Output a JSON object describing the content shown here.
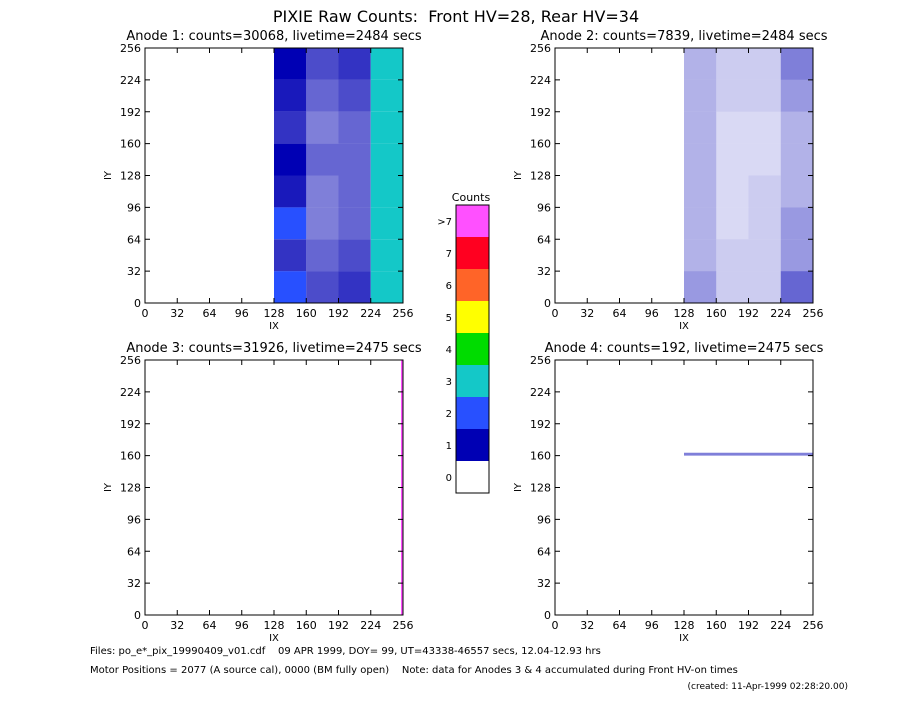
{
  "title": "PIXIE Raw Counts:  Front HV=28, Rear HV=34",
  "colorbar": {
    "title": "Counts",
    "labels": [
      "0",
      "1",
      "2",
      "3",
      "4",
      "5",
      "6",
      "7",
      ">7"
    ],
    "colors": [
      "#ffffff",
      "#0000b4",
      "#2850ff",
      "#14c8c8",
      "#00dc00",
      "#ffff00",
      "#ff6428",
      "#ff0020",
      "#ff50ff"
    ]
  },
  "footer": [
    "Files: po_e*_pix_19990409_v01.cdf    09 APR 1999, DOY= 99, UT=43338-46557 secs, 12.04-12.93 hrs",
    "Motor Positions = 2077 (A source cal), 0000 (BM fully open)    Note: data for Anodes 3 & 4 accumulated during Front HV-on times",
    "(created: 11-Apr-1999 02:28:20.00)"
  ],
  "chart_data": [
    {
      "type": "heatmap",
      "title": "Anode 1: counts=30068, livetime=2484 secs",
      "x_label": "IX",
      "y_label": "IY",
      "xlim": [
        0,
        256
      ],
      "ylim": [
        0,
        256
      ],
      "xticks": [
        0,
        32,
        64,
        96,
        128,
        160,
        192,
        224,
        256
      ],
      "yticks": [
        0,
        32,
        64,
        96,
        128,
        160,
        192,
        224,
        256
      ],
      "xbins": [
        0,
        128,
        160,
        192,
        224,
        256
      ],
      "ybins": [
        0,
        32,
        64,
        96,
        128,
        160,
        192,
        224,
        256
      ],
      "z": [
        [
          0,
          1.2,
          0.7,
          0.8,
          2.6
        ],
        [
          0,
          0.8,
          0.6,
          0.7,
          2.4
        ],
        [
          0,
          1.1,
          0.5,
          0.6,
          2.5
        ],
        [
          0,
          0.9,
          0.5,
          0.6,
          2.3
        ],
        [
          0,
          1.0,
          0.6,
          0.6,
          2.4
        ],
        [
          0,
          0.8,
          0.5,
          0.6,
          2.2
        ],
        [
          0,
          0.9,
          0.6,
          0.7,
          2.5
        ],
        [
          0,
          1.0,
          0.7,
          0.8,
          2.9
        ]
      ]
    },
    {
      "type": "heatmap",
      "title": "Anode 2: counts=7839, livetime=2484 secs",
      "x_label": "IX",
      "y_label": "IY",
      "xlim": [
        0,
        256
      ],
      "ylim": [
        0,
        256
      ],
      "xticks": [
        0,
        32,
        64,
        96,
        128,
        160,
        192,
        224,
        256
      ],
      "yticks": [
        0,
        32,
        64,
        96,
        128,
        160,
        192,
        224,
        256
      ],
      "xbins": [
        0,
        128,
        160,
        192,
        224,
        256
      ],
      "ybins": [
        0,
        32,
        64,
        96,
        128,
        160,
        192,
        224,
        256
      ],
      "z": [
        [
          0,
          0.4,
          0.2,
          0.2,
          0.6
        ],
        [
          0,
          0.3,
          0.2,
          0.2,
          0.4
        ],
        [
          0,
          0.3,
          0.1,
          0.2,
          0.4
        ],
        [
          0,
          0.3,
          0.1,
          0.2,
          0.3
        ],
        [
          0,
          0.3,
          0.1,
          0.1,
          0.3
        ],
        [
          0,
          0.3,
          0.1,
          0.1,
          0.3
        ],
        [
          0,
          0.3,
          0.2,
          0.2,
          0.4
        ],
        [
          0,
          0.3,
          0.2,
          0.2,
          0.5
        ]
      ]
    },
    {
      "type": "heatmap",
      "title": "Anode 3: counts=31926, livetime=2475 secs",
      "x_label": "IX",
      "y_label": "IY",
      "xlim": [
        0,
        256
      ],
      "ylim": [
        0,
        256
      ],
      "xticks": [
        0,
        32,
        64,
        96,
        128,
        160,
        192,
        224,
        256
      ],
      "yticks": [
        0,
        32,
        64,
        96,
        128,
        160,
        192,
        224,
        256
      ],
      "xbins": [
        0,
        254,
        256
      ],
      "ybins": [
        0,
        256
      ],
      "z": [
        [
          0,
          62
        ]
      ]
    },
    {
      "type": "heatmap",
      "title": "Anode 4: counts=192, livetime=2475 secs",
      "x_label": "IX",
      "y_label": "IY",
      "xlim": [
        0,
        256
      ],
      "ylim": [
        0,
        256
      ],
      "xticks": [
        0,
        32,
        64,
        96,
        128,
        160,
        192,
        224,
        256
      ],
      "yticks": [
        0,
        32,
        64,
        96,
        128,
        160,
        192,
        224,
        256
      ],
      "xbins": [
        0,
        128,
        256
      ],
      "ybins": [
        0,
        160,
        163,
        256
      ],
      "z": [
        [
          0,
          0
        ],
        [
          0,
          0.5
        ],
        [
          0,
          0
        ]
      ]
    }
  ]
}
